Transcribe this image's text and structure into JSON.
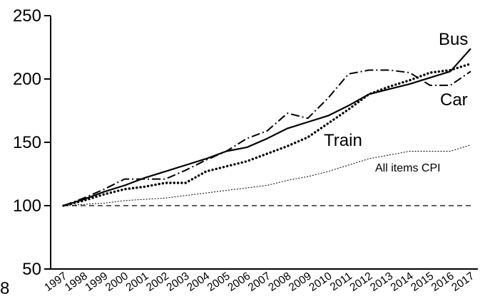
{
  "chart_data": {
    "type": "line",
    "title": "",
    "xlabel": "",
    "ylabel": "",
    "x": [
      "1997",
      "1998",
      "1999",
      "2000",
      "2001",
      "2002",
      "2003",
      "2004",
      "2005",
      "2006",
      "2007",
      "2008",
      "2009",
      "2010",
      "2011",
      "2012",
      "2013",
      "2014",
      "2015",
      "2016",
      "2017"
    ],
    "ylim": [
      50,
      250
    ],
    "yticks": [
      "50",
      "100",
      "150",
      "200",
      "250"
    ],
    "xtick_left_fragment": "8",
    "baseline": {
      "value": 100,
      "style": "dashed"
    },
    "grid": false,
    "legend": "none (labels placed beside lines)",
    "series": [
      {
        "name": "Bus",
        "style": "solid",
        "color": "#000000",
        "values": [
          100,
          105,
          111,
          116,
          122,
          127,
          132,
          137,
          143,
          146,
          153,
          161,
          166,
          171,
          179,
          188,
          192,
          196,
          201,
          206,
          224
        ]
      },
      {
        "name": "Car",
        "style": "dash-dot",
        "color": "#000000",
        "values": [
          100,
          106,
          113,
          121,
          121,
          121,
          128,
          136,
          143,
          153,
          159,
          173,
          169,
          185,
          204,
          207,
          207,
          205,
          195,
          195,
          206
        ]
      },
      {
        "name": "Train",
        "style": "dotted",
        "color": "#000000",
        "values": [
          100,
          104,
          109,
          113,
          115,
          118,
          118,
          127,
          131,
          135,
          141,
          147,
          154,
          165,
          176,
          188,
          194,
          199,
          205,
          207,
          212
        ]
      },
      {
        "name": "All items CPI",
        "style": "thin-dotted",
        "color": "#000000",
        "values": [
          100,
          101,
          102,
          104,
          105,
          106,
          108,
          110,
          112,
          114,
          116,
          120,
          123,
          127,
          132,
          137,
          140,
          143,
          143,
          143,
          148
        ]
      }
    ]
  }
}
